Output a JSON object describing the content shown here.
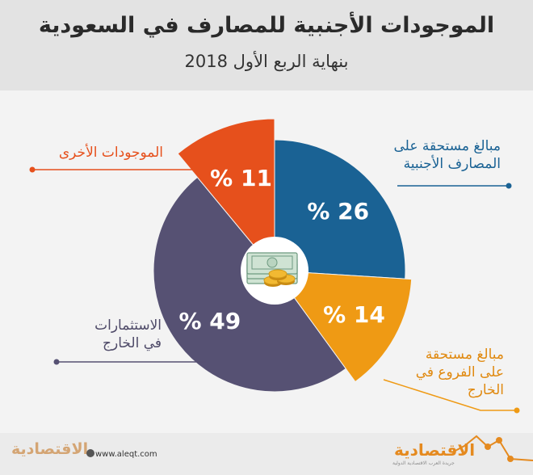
{
  "title": "الموجودات الأجنبية للمصارف في السعودية",
  "subtitle": "بنهاية الربع الأول 2018",
  "chart_data": {
    "type": "pie",
    "slices": [
      {
        "label": "مبالغ مستحقة على\nالمصارف الأجنبية",
        "value": 26,
        "value_label": "% 26",
        "color": "#1a6294"
      },
      {
        "label": "مبالغ مستحقة\nعلى الفروع في\nالخارج",
        "value": 14,
        "value_label": "% 14",
        "color": "#ef9a14"
      },
      {
        "label": "الاستثمارات\nفي الخارج",
        "value": 49,
        "value_label": "% 49",
        "color": "#565173"
      },
      {
        "label": "الموجودات الأخرى",
        "value": 11,
        "value_label": "% 11",
        "color": "#e6501c"
      }
    ]
  },
  "footer": {
    "brand_left": "الاقتصادية",
    "website": "www.aleqt.com",
    "brand_right": "الاقتصادية",
    "brand_right_sub": "جريدة العرب الاقتصادية الدولية"
  },
  "colors": {
    "header_bg": "#e3e3e3",
    "page_bg": "#f3f3f3",
    "text": "#2a2a2a",
    "accent": "#e58a1f"
  }
}
